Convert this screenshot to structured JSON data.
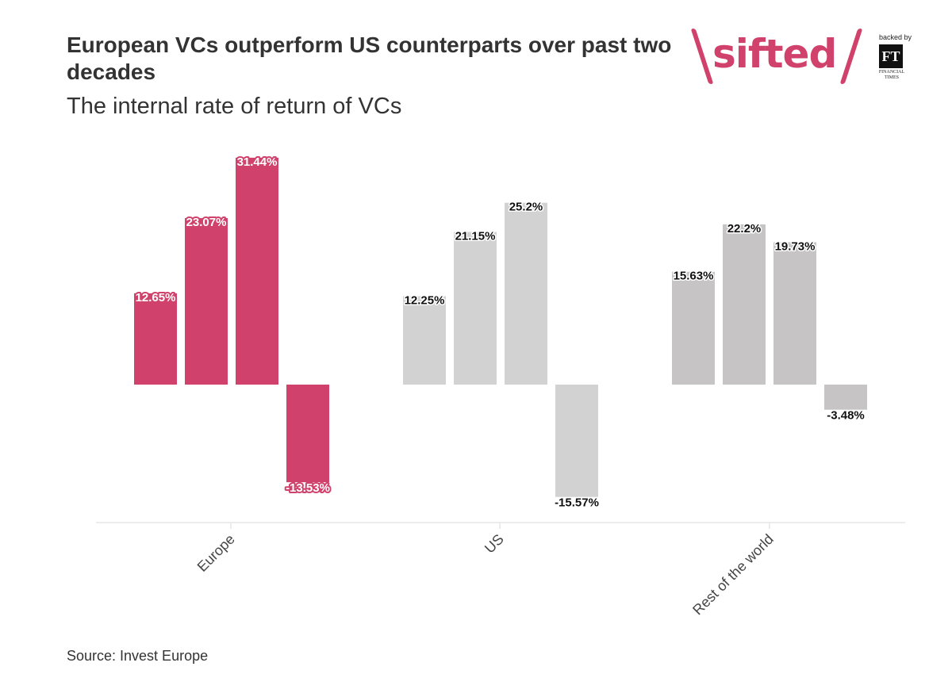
{
  "title": "European VCs outperform US counterparts over past two decades",
  "subtitle": "The internal rate of return of VCs",
  "source": "Source: Invest Europe",
  "brand": {
    "logo_text": "sifted",
    "backed_by": "backed by",
    "ft_mark": "FT",
    "ft_name_line1": "FINANCIAL",
    "ft_name_line2": "TIMES"
  },
  "colors": {
    "europe": "#d0426b",
    "us": "#d2d2d2",
    "rest": "#c6c4c4",
    "axis": "#e6e6e6"
  },
  "chart_data": {
    "type": "bar",
    "categories": [
      "Europe",
      "US",
      "Rest of the world"
    ],
    "groups": [
      {
        "category": "Europe",
        "values": [
          12.65,
          23.07,
          31.44,
          -13.53
        ],
        "labels": [
          "12.65%",
          "23.07%",
          "31.44%",
          "-13.53%"
        ]
      },
      {
        "category": "US",
        "values": [
          12.25,
          21.15,
          25.2,
          -15.57
        ],
        "labels": [
          "12.25%",
          "21.15%",
          "25.2%",
          "-15.57%"
        ]
      },
      {
        "category": "Rest of the world",
        "values": [
          15.63,
          22.2,
          19.73,
          -3.48
        ],
        "labels": [
          "15.63%",
          "22.2%",
          "19.73%",
          "-3.48%"
        ]
      }
    ],
    "ylim": [
      -20,
      32
    ],
    "grid": false,
    "legend": "none"
  }
}
